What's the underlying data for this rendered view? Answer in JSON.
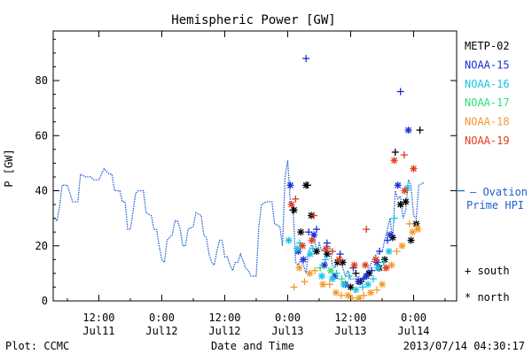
{
  "chart_data": {
    "type": "scatter",
    "title": "Hemispheric Power [GW]",
    "xlabel": "Date and Time",
    "ylabel": "P [GW]",
    "footer_left": "Plot: CCMC",
    "footer_right": "2013/07/14 04:30:17",
    "grid": false,
    "legend_placement": "right",
    "x_unit": "hours since 2013-07-10 00:00 UT",
    "xlim": [
      3.3,
      80.2
    ],
    "ylim": [
      0,
      98
    ],
    "y_ticks": [
      0,
      20,
      40,
      60,
      80
    ],
    "x_ticks": [
      {
        "x": 12,
        "time": "12:00",
        "date": "Jul11"
      },
      {
        "x": 24,
        "time": "0:00",
        "date": "Jul12"
      },
      {
        "x": 36,
        "time": "12:00",
        "date": "Jul12"
      },
      {
        "x": 48,
        "time": "0:00",
        "date": "Jul13"
      },
      {
        "x": 60,
        "time": "12:00",
        "date": "Jul13"
      },
      {
        "x": 72,
        "time": "0:00",
        "date": "Jul14"
      }
    ],
    "legend_entries": [
      {
        "name": "METP-02",
        "color": "#000000"
      },
      {
        "name": "NOAA-15",
        "color": "#1a2fd0"
      },
      {
        "name": "NOAA-16",
        "color": "#18c4e6"
      },
      {
        "name": "NOAA-17",
        "color": "#2ee07a"
      },
      {
        "name": "NOAA-18",
        "color": "#f29a2e"
      },
      {
        "name": "NOAA-19",
        "color": "#e23c1c"
      }
    ],
    "ovation_label": [
      "Ovation",
      "Prime HPI"
    ],
    "ovation_color": "#1f5fd6",
    "marker_legend": [
      {
        "symbol": "+",
        "label": "south"
      },
      {
        "symbol": "*",
        "label": "north"
      }
    ],
    "ovation_series": [
      [
        3.5,
        30
      ],
      [
        4.0,
        29
      ],
      [
        4.5,
        34
      ],
      [
        5.0,
        42
      ],
      [
        6.0,
        42
      ],
      [
        7.0,
        36
      ],
      [
        8.0,
        36
      ],
      [
        8.5,
        46
      ],
      [
        9.5,
        45
      ],
      [
        10.5,
        45
      ],
      [
        11.0,
        44
      ],
      [
        12.0,
        44
      ],
      [
        13.0,
        48
      ],
      [
        14.0,
        46
      ],
      [
        14.5,
        46
      ],
      [
        15.0,
        40
      ],
      [
        16.0,
        40
      ],
      [
        16.5,
        36
      ],
      [
        17.0,
        36
      ],
      [
        17.5,
        26
      ],
      [
        18.0,
        26
      ],
      [
        18.5,
        32
      ],
      [
        19.0,
        39
      ],
      [
        19.5,
        40
      ],
      [
        20.5,
        40
      ],
      [
        21.0,
        32
      ],
      [
        22.0,
        31
      ],
      [
        22.5,
        26
      ],
      [
        23.0,
        26
      ],
      [
        23.5,
        20
      ],
      [
        24.0,
        15
      ],
      [
        24.5,
        14
      ],
      [
        25.0,
        22
      ],
      [
        26.0,
        24
      ],
      [
        26.5,
        29
      ],
      [
        27.0,
        29
      ],
      [
        27.5,
        26
      ],
      [
        28.0,
        20
      ],
      [
        28.5,
        20
      ],
      [
        29.0,
        26
      ],
      [
        30.0,
        27
      ],
      [
        30.5,
        32
      ],
      [
        31.5,
        31
      ],
      [
        32.0,
        24
      ],
      [
        32.5,
        23
      ],
      [
        33.0,
        17
      ],
      [
        33.5,
        14
      ],
      [
        34.0,
        13
      ],
      [
        34.5,
        18
      ],
      [
        35.0,
        22
      ],
      [
        35.5,
        22
      ],
      [
        36.0,
        16
      ],
      [
        36.5,
        16
      ],
      [
        37.0,
        13
      ],
      [
        37.5,
        11
      ],
      [
        38.0,
        14
      ],
      [
        38.5,
        14
      ],
      [
        39.0,
        17
      ],
      [
        40.0,
        12
      ],
      [
        40.5,
        11
      ],
      [
        41.0,
        9
      ],
      [
        42.0,
        9
      ],
      [
        42.5,
        27
      ],
      [
        43.0,
        35
      ],
      [
        44.0,
        36
      ],
      [
        45.0,
        36
      ],
      [
        45.5,
        28
      ],
      [
        46.5,
        27
      ],
      [
        47.0,
        20
      ],
      [
        47.5,
        45
      ],
      [
        48.0,
        51
      ],
      [
        48.5,
        36
      ],
      [
        49.0,
        35
      ],
      [
        49.5,
        14
      ],
      [
        50.0,
        13
      ],
      [
        50.5,
        15
      ],
      [
        51.0,
        13
      ],
      [
        51.5,
        10
      ],
      [
        52.0,
        18
      ],
      [
        52.5,
        20
      ],
      [
        53.0,
        25
      ],
      [
        53.5,
        17
      ],
      [
        54.0,
        21
      ],
      [
        54.5,
        18
      ],
      [
        55.0,
        19
      ],
      [
        56.0,
        20
      ],
      [
        56.5,
        13
      ],
      [
        57.0,
        12
      ],
      [
        57.5,
        14
      ],
      [
        58.0,
        15
      ],
      [
        59.0,
        9
      ],
      [
        59.5,
        11
      ],
      [
        60.0,
        8
      ],
      [
        61.0,
        8
      ],
      [
        61.5,
        9
      ],
      [
        62.0,
        8
      ],
      [
        63.0,
        10
      ],
      [
        63.5,
        12
      ],
      [
        64.5,
        16
      ],
      [
        65.0,
        17
      ],
      [
        66.0,
        18
      ],
      [
        67.0,
        26
      ],
      [
        67.5,
        30
      ],
      [
        68.0,
        22
      ],
      [
        68.5,
        40
      ],
      [
        69.0,
        37
      ],
      [
        69.5,
        38
      ],
      [
        70.0,
        30
      ],
      [
        70.5,
        33
      ],
      [
        71.0,
        44
      ],
      [
        71.5,
        42
      ],
      [
        72.0,
        31
      ],
      [
        72.5,
        30
      ],
      [
        73.0,
        42
      ],
      [
        74.0,
        43
      ]
    ],
    "series": [
      {
        "name": "METP-02",
        "color": "#000000",
        "south": [
          [
            51.8,
            42
          ],
          [
            61.0,
            10
          ],
          [
            68.5,
            54
          ],
          [
            73.2,
            62
          ],
          [
            49.0,
            33
          ]
        ],
        "north": [
          [
            51.5,
            42
          ],
          [
            49.2,
            33
          ],
          [
            50.5,
            25
          ],
          [
            52.5,
            31
          ],
          [
            53.5,
            18
          ],
          [
            55.5,
            17
          ],
          [
            57.5,
            14
          ],
          [
            58.5,
            14
          ],
          [
            60.0,
            5
          ],
          [
            61.8,
            7
          ],
          [
            63.5,
            10
          ],
          [
            65.5,
            12
          ],
          [
            66.5,
            15
          ],
          [
            68.0,
            23
          ],
          [
            69.5,
            35
          ],
          [
            70.5,
            36
          ],
          [
            71.5,
            22
          ],
          [
            72.5,
            28
          ]
        ]
      },
      {
        "name": "NOAA-15",
        "color": "#1a2fd0",
        "south": [
          [
            51.5,
            88
          ],
          [
            69.5,
            76
          ],
          [
            52.0,
            25
          ],
          [
            53.5,
            26
          ],
          [
            55.5,
            21
          ],
          [
            58.0,
            17
          ],
          [
            60.5,
            12
          ],
          [
            62.5,
            8
          ],
          [
            64.0,
            11
          ],
          [
            65.5,
            18
          ],
          [
            67.0,
            22
          ]
        ],
        "north": [
          [
            48.5,
            42
          ],
          [
            50.0,
            18
          ],
          [
            51.0,
            15
          ],
          [
            53.0,
            24
          ],
          [
            55.0,
            13
          ],
          [
            57.0,
            9
          ],
          [
            59.0,
            6
          ],
          [
            61.5,
            7
          ],
          [
            63.0,
            9
          ],
          [
            65.0,
            14
          ],
          [
            67.5,
            24
          ],
          [
            69.0,
            42
          ],
          [
            71.0,
            62
          ]
        ]
      },
      {
        "name": "NOAA-16",
        "color": "#18c4e6",
        "south": [
          [
            50.3,
            21
          ],
          [
            52.8,
            19
          ],
          [
            55.2,
            15
          ],
          [
            57.3,
            10
          ],
          [
            59.7,
            9
          ],
          [
            62.3,
            5
          ],
          [
            64.3,
            8
          ],
          [
            66.3,
            14
          ],
          [
            68.3,
            30
          ]
        ],
        "north": [
          [
            48.2,
            22
          ],
          [
            49.8,
            19
          ],
          [
            52.3,
            17
          ],
          [
            54.5,
            9
          ],
          [
            56.5,
            8
          ],
          [
            58.7,
            6
          ],
          [
            61.0,
            4
          ],
          [
            63.3,
            6
          ],
          [
            65.2,
            12
          ],
          [
            67.3,
            18
          ],
          [
            70.8,
            41
          ]
        ]
      },
      {
        "name": "NOAA-17",
        "color": "#2ee07a",
        "south": [
          [
            54.2,
            12
          ],
          [
            58.3,
            8
          ]
        ],
        "north": [
          [
            56.2,
            11
          ]
        ]
      },
      {
        "name": "NOAA-18",
        "color": "#f29a2e",
        "south": [
          [
            49.2,
            5
          ],
          [
            51.2,
            7
          ],
          [
            53.2,
            11
          ],
          [
            56.0,
            6
          ],
          [
            58.2,
            2
          ],
          [
            60.3,
            1
          ],
          [
            62.5,
            2
          ],
          [
            65.0,
            4
          ],
          [
            66.5,
            12
          ],
          [
            68.8,
            18
          ],
          [
            71.2,
            28
          ],
          [
            72.5,
            27
          ]
        ],
        "north": [
          [
            50.2,
            12
          ],
          [
            52.2,
            10
          ],
          [
            54.7,
            6
          ],
          [
            57.2,
            3
          ],
          [
            59.5,
            2
          ],
          [
            61.6,
            1
          ],
          [
            63.8,
            3
          ],
          [
            66.0,
            6
          ],
          [
            67.8,
            13
          ],
          [
            69.8,
            20
          ],
          [
            71.8,
            25
          ],
          [
            72.8,
            26
          ]
        ]
      },
      {
        "name": "NOAA-19",
        "color": "#e23c1c",
        "south": [
          [
            49.5,
            37
          ],
          [
            53.0,
            31
          ],
          [
            63.0,
            26
          ],
          [
            70.2,
            53
          ],
          [
            56.5,
            18
          ]
        ],
        "north": [
          [
            48.7,
            35
          ],
          [
            50.8,
            20
          ],
          [
            52.6,
            22
          ],
          [
            55.3,
            19
          ],
          [
            57.8,
            15
          ],
          [
            60.7,
            13
          ],
          [
            62.8,
            13
          ],
          [
            64.8,
            15
          ],
          [
            66.8,
            12
          ],
          [
            68.3,
            51
          ],
          [
            70.3,
            40
          ],
          [
            72.0,
            48
          ]
        ]
      }
    ]
  }
}
